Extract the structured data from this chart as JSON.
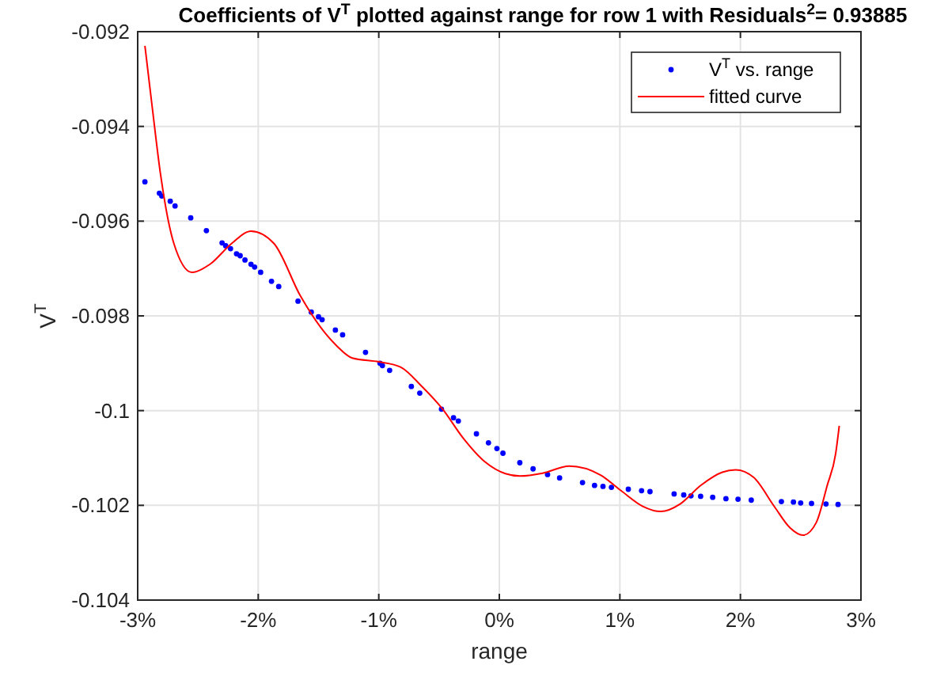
{
  "chart_data": {
    "type": "scatter",
    "title": "Coefficients of V$^{T}$ plotted against range for row 1 with Residuals$^{2}$= 0.93885",
    "xlabel": "range",
    "ylabel": "V$^{T}$",
    "xlim": [
      -3,
      3
    ],
    "xticks": [
      {
        "value": -3,
        "label": "-3%"
      },
      {
        "value": -2,
        "label": "-2%"
      },
      {
        "value": -1,
        "label": "-1%"
      },
      {
        "value": 0,
        "label": "0%"
      },
      {
        "value": 1,
        "label": "1%"
      },
      {
        "value": 2,
        "label": "2%"
      },
      {
        "value": 3,
        "label": "3%"
      }
    ],
    "ylim": [
      -0.104,
      -0.092
    ],
    "yticks": [
      -0.104,
      -0.102,
      -0.1,
      -0.098,
      -0.096,
      -0.094,
      -0.092
    ],
    "grid": true,
    "legend": "top right",
    "series": [
      {
        "name": "V$^{T}$ vs. range",
        "marker": "circle",
        "color": "#0000ff",
        "x": [
          -2.94,
          -2.82,
          -2.8,
          -2.73,
          -2.69,
          -2.56,
          -2.43,
          -2.3,
          -2.27,
          -2.23,
          -2.18,
          -2.15,
          -2.11,
          -2.06,
          -2.03,
          -1.98,
          -1.89,
          -1.83,
          -1.67,
          -1.56,
          -1.5,
          -1.47,
          -1.36,
          -1.3,
          -1.11,
          -0.99,
          -0.97,
          -0.91,
          -0.73,
          -0.66,
          -0.48,
          -0.38,
          -0.34,
          -0.19,
          -0.09,
          -0.02,
          0.03,
          0.17,
          0.28,
          0.4,
          0.5,
          0.69,
          0.79,
          0.86,
          0.93,
          1.07,
          1.18,
          1.25,
          1.45,
          1.53,
          1.59,
          1.67,
          1.77,
          1.88,
          1.98,
          2.09,
          2.34,
          2.44,
          2.5,
          2.59,
          2.71,
          2.81
        ],
        "values": [
          -0.09517,
          -0.09541,
          -0.09547,
          -0.09558,
          -0.09568,
          -0.09593,
          -0.0962,
          -0.09646,
          -0.09652,
          -0.09658,
          -0.09669,
          -0.09673,
          -0.09682,
          -0.09691,
          -0.09697,
          -0.09708,
          -0.09727,
          -0.09738,
          -0.09769,
          -0.09792,
          -0.09802,
          -0.09808,
          -0.0983,
          -0.0984,
          -0.09877,
          -0.099,
          -0.09905,
          -0.09915,
          -0.09949,
          -0.09963,
          -0.09997,
          -0.10015,
          -0.10022,
          -0.10049,
          -0.10068,
          -0.1008,
          -0.1009,
          -0.1011,
          -0.10123,
          -0.10135,
          -0.10142,
          -0.10152,
          -0.10158,
          -0.1016,
          -0.10162,
          -0.10166,
          -0.10169,
          -0.10171,
          -0.10176,
          -0.10178,
          -0.1018,
          -0.10181,
          -0.10183,
          -0.10186,
          -0.10187,
          -0.10189,
          -0.10192,
          -0.10193,
          -0.10195,
          -0.10196,
          -0.10197,
          -0.10198
        ]
      },
      {
        "name": "fitted curve",
        "type": "line",
        "line_style": "solid",
        "color": "#ff0000",
        "x": [
          -2.94,
          -2.88,
          -2.81,
          -2.7,
          -2.55,
          -2.4,
          -2.22,
          -2.06,
          -1.87,
          -1.65,
          -1.48,
          -1.35,
          -1.22,
          -1.0,
          -0.82,
          -0.65,
          -0.47,
          -0.3,
          -0.12,
          0.05,
          0.17,
          0.36,
          0.58,
          0.84,
          1.01,
          1.19,
          1.34,
          1.5,
          1.67,
          1.85,
          1.96,
          2.11,
          2.28,
          2.41,
          2.52,
          2.63,
          2.72,
          2.79,
          2.82
        ],
        "values": [
          -0.0923,
          -0.09358,
          -0.09502,
          -0.09647,
          -0.09708,
          -0.09691,
          -0.09647,
          -0.09621,
          -0.09647,
          -0.09758,
          -0.09825,
          -0.09863,
          -0.09889,
          -0.09897,
          -0.09908,
          -0.09947,
          -0.09997,
          -0.10058,
          -0.10108,
          -0.10133,
          -0.10138,
          -0.10132,
          -0.10117,
          -0.10136,
          -0.10169,
          -0.10202,
          -0.10213,
          -0.10197,
          -0.10158,
          -0.1013,
          -0.10125,
          -0.10141,
          -0.10202,
          -0.10247,
          -0.10263,
          -0.10236,
          -0.10158,
          -0.10091,
          -0.10032
        ]
      }
    ]
  }
}
